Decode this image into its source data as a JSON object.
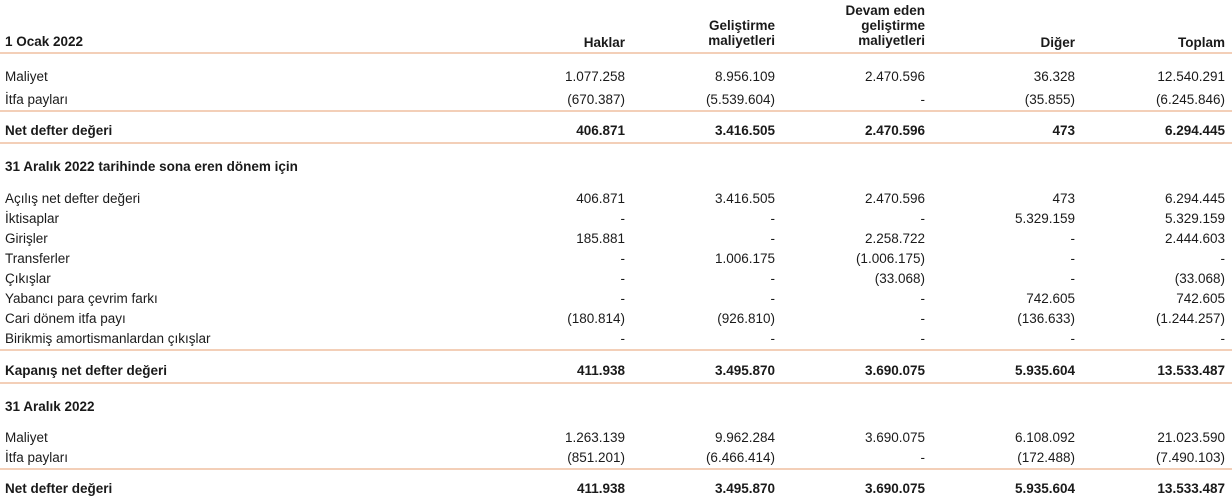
{
  "header": {
    "period": "1 Ocak 2022",
    "columns": [
      {
        "lines": [
          "Haklar"
        ]
      },
      {
        "lines": [
          "Geliştirme",
          "maliyetleri"
        ]
      },
      {
        "lines": [
          "Devam eden",
          "geliştirme",
          "maliyetleri"
        ]
      },
      {
        "lines": [
          "Diğer"
        ]
      },
      {
        "lines": [
          "Toplam"
        ]
      }
    ]
  },
  "sections": [
    {
      "rows": [
        {
          "label": "Maliyet",
          "values": [
            "1.077.258",
            "8.956.109",
            "2.470.596",
            "36.328",
            "12.540.291"
          ]
        },
        {
          "label": "İtfa payları",
          "values": [
            "(670.387)",
            "(5.539.604)",
            "-",
            "(35.855)",
            "(6.245.846)"
          ]
        }
      ],
      "total": {
        "label": "Net defter değeri",
        "values": [
          "406.871",
          "3.416.505",
          "2.470.596",
          "473",
          "6.294.445"
        ]
      }
    },
    {
      "title": "31 Aralık 2022 tarihinde sona eren dönem için",
      "rows": [
        {
          "label": "Açılış net defter değeri",
          "values": [
            "406.871",
            "3.416.505",
            "2.470.596",
            "473",
            "6.294.445"
          ]
        },
        {
          "label": "İktisaplar",
          "values": [
            "-",
            "-",
            "-",
            "5.329.159",
            "5.329.159"
          ]
        },
        {
          "label": "Girişler",
          "values": [
            "185.881",
            "-",
            "2.258.722",
            "-",
            "2.444.603"
          ]
        },
        {
          "label": "Transferler",
          "values": [
            "-",
            "1.006.175",
            "(1.006.175)",
            "-",
            "-"
          ]
        },
        {
          "label": "Çıkışlar",
          "values": [
            "-",
            "-",
            "(33.068)",
            "-",
            "(33.068)"
          ]
        },
        {
          "label": "Yabancı para çevrim farkı",
          "values": [
            "-",
            "-",
            "-",
            "742.605",
            "742.605"
          ]
        },
        {
          "label": "Cari dönem itfa payı",
          "values": [
            "(180.814)",
            "(926.810)",
            "-",
            "(136.633)",
            "(1.244.257)"
          ]
        },
        {
          "label": "Birikmiş amortismanlardan çıkışlar",
          "values": [
            "-",
            "-",
            "-",
            "-",
            "-"
          ]
        }
      ],
      "total": {
        "label": "Kapanış net defter değeri",
        "values": [
          "411.938",
          "3.495.870",
          "3.690.075",
          "5.935.604",
          "13.533.487"
        ]
      }
    },
    {
      "title": "31 Aralık 2022",
      "rows": [
        {
          "label": "Maliyet",
          "values": [
            "1.263.139",
            "9.962.284",
            "3.690.075",
            "6.108.092",
            "21.023.590"
          ]
        },
        {
          "label": "İtfa payları",
          "values": [
            "(851.201)",
            "(6.466.414)",
            "-",
            "(172.488)",
            "(7.490.103)"
          ]
        }
      ],
      "total": {
        "label": "Net defter değeri",
        "values": [
          "411.938",
          "3.495.870",
          "3.690.075",
          "5.935.604",
          "13.533.487"
        ]
      }
    }
  ]
}
